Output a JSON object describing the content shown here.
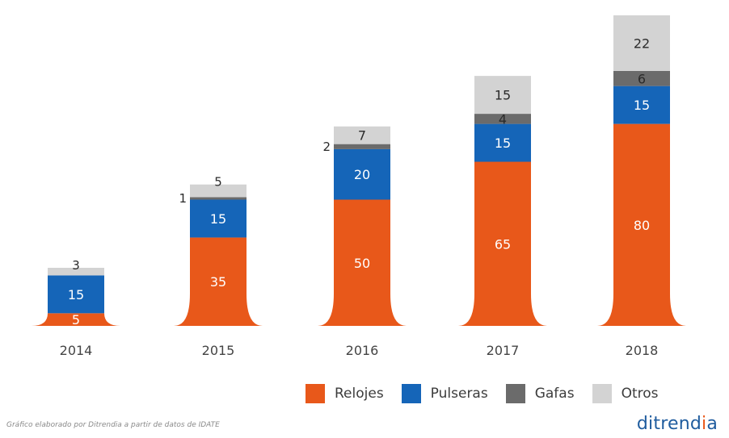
{
  "chart_data": {
    "type": "bar",
    "stacked": true,
    "categories": [
      "2014",
      "2015",
      "2016",
      "2017",
      "2018"
    ],
    "series": [
      {
        "name": "Relojes",
        "color": "#e8581a",
        "values": [
          5,
          35,
          50,
          65,
          80
        ]
      },
      {
        "name": "Pulseras",
        "color": "#1565b8",
        "values": [
          15,
          15,
          20,
          15,
          15
        ]
      },
      {
        "name": "Gafas",
        "color": "#6b6b6b",
        "values": [
          null,
          1,
          2,
          4,
          6
        ]
      },
      {
        "name": "Otros",
        "color": "#d3d3d3",
        "values": [
          3,
          5,
          7,
          15,
          22
        ]
      }
    ],
    "ylim": [
      0,
      123
    ],
    "grid": false,
    "legend_position": "bottom-right"
  },
  "footer": {
    "source_note": "Gráfico elaborado por Ditrendia a partir de datos de IDATE",
    "brand_main": "ditrend",
    "brand_accent": "i",
    "brand_tail": "a"
  }
}
